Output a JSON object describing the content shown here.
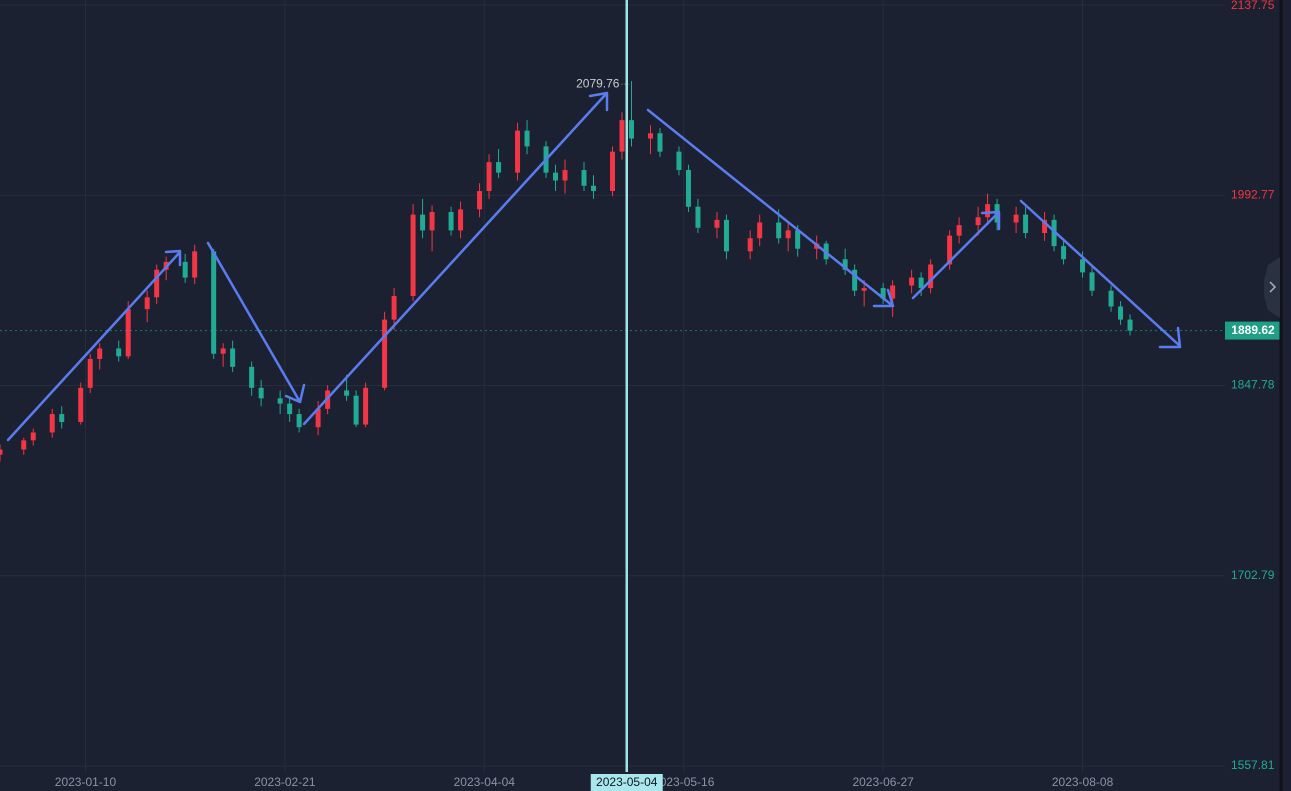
{
  "chart_data": {
    "type": "candlestick",
    "x": [
      "2022-12-23",
      "2022-12-28",
      "2022-12-30",
      "2023-01-03",
      "2023-01-05",
      "2023-01-09",
      "2023-01-11",
      "2023-01-13",
      "2023-01-17",
      "2023-01-19",
      "2023-01-23",
      "2023-01-25",
      "2023-01-27",
      "2023-01-31",
      "2023-02-02",
      "2023-02-06",
      "2023-02-08",
      "2023-02-10",
      "2023-02-14",
      "2023-02-16",
      "2023-02-20",
      "2023-02-22",
      "2023-02-24",
      "2023-02-28",
      "2023-03-02",
      "2023-03-06",
      "2023-03-08",
      "2023-03-10",
      "2023-03-14",
      "2023-03-16",
      "2023-03-20",
      "2023-03-22",
      "2023-03-24",
      "2023-03-28",
      "2023-03-30",
      "2023-04-03",
      "2023-04-05",
      "2023-04-07",
      "2023-04-11",
      "2023-04-13",
      "2023-04-17",
      "2023-04-19",
      "2023-04-21",
      "2023-04-25",
      "2023-04-27",
      "2023-05-01",
      "2023-05-03",
      "2023-05-05",
      "2023-05-09",
      "2023-05-11",
      "2023-05-15",
      "2023-05-17",
      "2023-05-19",
      "2023-05-23",
      "2023-05-25",
      "2023-05-30",
      "2023-06-01",
      "2023-06-05",
      "2023-06-07",
      "2023-06-09",
      "2023-06-13",
      "2023-06-15",
      "2023-06-19",
      "2023-06-21",
      "2023-06-23",
      "2023-06-27",
      "2023-06-29",
      "2023-07-03",
      "2023-07-05",
      "2023-07-07",
      "2023-07-11",
      "2023-07-13",
      "2023-07-17",
      "2023-07-19",
      "2023-07-21",
      "2023-07-25",
      "2023-07-27",
      "2023-07-31",
      "2023-08-02",
      "2023-08-04",
      "2023-08-08",
      "2023-08-10",
      "2023-08-14",
      "2023-08-16",
      "2023-08-18"
    ],
    "open": [
      1795,
      1799,
      1806,
      1812,
      1826,
      1820,
      1846,
      1868,
      1876,
      1870,
      1906,
      1915,
      1936,
      1942,
      1930,
      1950,
      1872,
      1876,
      1862,
      1846,
      1838,
      1834,
      1826,
      1816,
      1830,
      1844,
      1840,
      1818,
      1846,
      1898,
      1916,
      1978,
      1966,
      1980,
      1966,
      1982,
      1996,
      2018,
      2010,
      2042,
      2030,
      2010,
      2004,
      2012,
      2000,
      1996,
      2026,
      2050,
      2036,
      2040,
      2026,
      2012,
      1984,
      1968,
      1974,
      1950,
      1960,
      1972,
      1960,
      1966,
      1952,
      1956,
      1944,
      1936,
      1920,
      1922,
      1914,
      1924,
      1930,
      1922,
      1940,
      1962,
      1970,
      1976,
      1986,
      1972,
      1978,
      1964,
      1974,
      1954,
      1944,
      1934,
      1920,
      1908,
      1898
    ],
    "high": [
      1803,
      1808,
      1815,
      1830,
      1832,
      1850,
      1872,
      1880,
      1882,
      1912,
      1920,
      1940,
      1946,
      1948,
      1955,
      1952,
      1880,
      1882,
      1866,
      1852,
      1844,
      1838,
      1830,
      1836,
      1848,
      1856,
      1844,
      1850,
      1904,
      1922,
      1986,
      1990,
      1985,
      1984,
      1988,
      2002,
      2024,
      2028,
      2048,
      2050,
      2034,
      2016,
      2020,
      2018,
      2008,
      2030,
      2056,
      2079.76,
      2046,
      2044,
      2030,
      2016,
      1990,
      1980,
      1978,
      1966,
      1978,
      1982,
      1972,
      1970,
      1962,
      1958,
      1952,
      1940,
      1928,
      1926,
      1928,
      1936,
      1934,
      1944,
      1966,
      1976,
      1984,
      1994,
      1990,
      1984,
      1984,
      1980,
      1978,
      1960,
      1950,
      1938,
      1924,
      1912,
      1902
    ],
    "low": [
      1790,
      1795,
      1802,
      1808,
      1815,
      1818,
      1842,
      1860,
      1866,
      1868,
      1896,
      1910,
      1928,
      1926,
      1925,
      1868,
      1862,
      1858,
      1840,
      1832,
      1826,
      1820,
      1812,
      1810,
      1826,
      1836,
      1816,
      1816,
      1844,
      1890,
      1912,
      1960,
      1950,
      1962,
      1960,
      1976,
      1990,
      2006,
      2004,
      2024,
      2006,
      1996,
      1994,
      1996,
      1990,
      1992,
      2020,
      2030,
      2024,
      2022,
      2008,
      1980,
      1964,
      1960,
      1944,
      1944,
      1954,
      1956,
      1950,
      1946,
      1944,
      1940,
      1932,
      1916,
      1908,
      1910,
      1900,
      1918,
      1916,
      1918,
      1936,
      1956,
      1962,
      1970,
      1966,
      1964,
      1960,
      1958,
      1950,
      1940,
      1930,
      1916,
      1904,
      1894,
      1886
    ],
    "close": [
      1799,
      1806,
      1812,
      1826,
      1820,
      1846,
      1868,
      1876,
      1870,
      1906,
      1915,
      1936,
      1942,
      1930,
      1950,
      1872,
      1876,
      1862,
      1846,
      1838,
      1834,
      1826,
      1816,
      1830,
      1844,
      1840,
      1818,
      1846,
      1898,
      1916,
      1978,
      1966,
      1980,
      1966,
      1982,
      1996,
      2018,
      2010,
      2042,
      2030,
      2010,
      2004,
      2012,
      2000,
      1996,
      2026,
      2050,
      2036,
      2040,
      2026,
      2012,
      1984,
      1968,
      1974,
      1950,
      1960,
      1972,
      1960,
      1966,
      1952,
      1956,
      1944,
      1936,
      1920,
      1922,
      1914,
      1924,
      1930,
      1922,
      1940,
      1962,
      1970,
      1976,
      1986,
      1972,
      1978,
      1964,
      1974,
      1954,
      1944,
      1934,
      1920,
      1908,
      1898,
      1889.62
    ],
    "up_color": "#f23645",
    "down_color": "#22ab94",
    "xlim": [
      "2022-12-23",
      "2023-09-07"
    ],
    "xticks": [
      "2023-01-10",
      "2023-02-21",
      "2023-04-04",
      "2023-05-16",
      "2023-06-27",
      "2023-08-08"
    ],
    "ylim": [
      1553.24,
      2141.56
    ],
    "yticks": [
      1557.81,
      1702.79,
      1847.78,
      1992.77,
      2137.75
    ],
    "grid": true,
    "max_marker": 2079.76,
    "last_price": 1889.62,
    "crosshair_x": "2023-05-04"
  }
}
